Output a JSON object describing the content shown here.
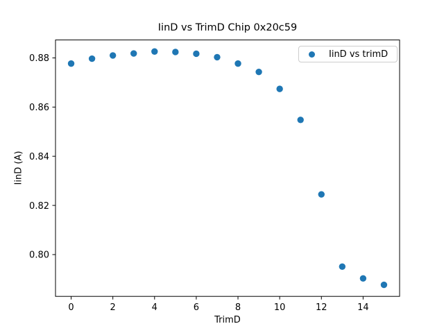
{
  "chart_data": {
    "type": "scatter",
    "title": "IinD vs TrimD Chip 0x20c59",
    "xlabel": "TrimD",
    "ylabel": "IinD (A)",
    "legend_label": "IinD vs trimD",
    "legend_position": "upper right",
    "grid": false,
    "marker_color": "#1f77b4",
    "x": [
      0,
      1,
      2,
      3,
      4,
      5,
      6,
      7,
      8,
      9,
      10,
      11,
      12,
      13,
      14,
      15
    ],
    "y": [
      0.8777,
      0.8797,
      0.881,
      0.8818,
      0.8826,
      0.8824,
      0.8817,
      0.8803,
      0.8777,
      0.8743,
      0.8674,
      0.8548,
      0.8245,
      0.7951,
      0.7903,
      0.7877
    ],
    "xlim": [
      -0.75,
      15.75
    ],
    "ylim": [
      0.783,
      0.8873
    ],
    "xticks": [
      0,
      2,
      4,
      6,
      8,
      10,
      12,
      14
    ],
    "xtick_labels": [
      "0",
      "2",
      "4",
      "6",
      "8",
      "10",
      "12",
      "14"
    ],
    "yticks": [
      0.8,
      0.82,
      0.84,
      0.86,
      0.88
    ],
    "ytick_labels": [
      "0.80",
      "0.82",
      "0.84",
      "0.86",
      "0.88"
    ]
  }
}
